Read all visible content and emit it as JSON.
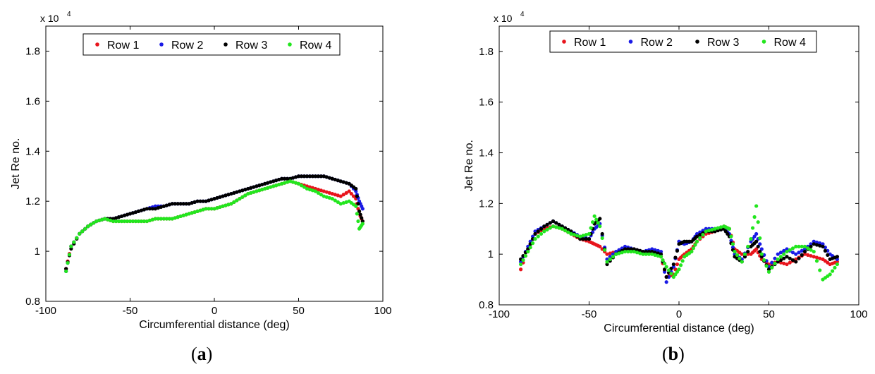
{
  "chart_data": [
    {
      "type": "scatter",
      "caption": "a",
      "xlabel": "Circumferential distance (deg)",
      "ylabel": "Jet Re no.",
      "exponent_label": "x 10",
      "exponent_power": "4",
      "xlim": [
        -100,
        100
      ],
      "ylim": [
        0.8,
        1.9
      ],
      "xticks": [
        "-100",
        "-50",
        "0",
        "50",
        "100"
      ],
      "yticks": [
        "0.8",
        "1",
        "1.2",
        "1.4",
        "1.6",
        "1.8"
      ],
      "legend_position": "top",
      "series": [
        {
          "name": "Row 1",
          "color": "#e8141c",
          "x": [
            -88,
            -85,
            -80,
            -75,
            -70,
            -65,
            -60,
            -55,
            -50,
            -45,
            -40,
            -35,
            -30,
            -25,
            -20,
            -15,
            -10,
            -5,
            0,
            5,
            10,
            15,
            20,
            25,
            30,
            35,
            40,
            45,
            50,
            55,
            60,
            65,
            70,
            75,
            80,
            84,
            86,
            88
          ],
          "y": [
            0.93,
            1.02,
            1.07,
            1.1,
            1.12,
            1.13,
            1.12,
            1.12,
            1.12,
            1.12,
            1.12,
            1.13,
            1.13,
            1.13,
            1.14,
            1.15,
            1.16,
            1.17,
            1.17,
            1.18,
            1.19,
            1.21,
            1.23,
            1.24,
            1.25,
            1.26,
            1.27,
            1.28,
            1.27,
            1.26,
            1.25,
            1.24,
            1.23,
            1.22,
            1.24,
            1.21,
            1.15,
            1.12
          ]
        },
        {
          "name": "Row 2",
          "color": "#1a1ae6",
          "x": [
            -88,
            -85,
            -80,
            -75,
            -70,
            -65,
            -60,
            -55,
            -50,
            -45,
            -40,
            -35,
            -30,
            -25,
            -20,
            -15,
            -10,
            -5,
            0,
            5,
            10,
            15,
            20,
            25,
            30,
            35,
            40,
            45,
            50,
            55,
            60,
            65,
            70,
            75,
            80,
            84,
            86,
            88
          ],
          "y": [
            0.92,
            1.02,
            1.07,
            1.1,
            1.12,
            1.13,
            1.13,
            1.14,
            1.15,
            1.16,
            1.17,
            1.18,
            1.18,
            1.19,
            1.19,
            1.19,
            1.2,
            1.2,
            1.21,
            1.22,
            1.23,
            1.24,
            1.25,
            1.26,
            1.27,
            1.28,
            1.29,
            1.29,
            1.3,
            1.3,
            1.3,
            1.3,
            1.29,
            1.28,
            1.27,
            1.24,
            1.2,
            1.17
          ]
        },
        {
          "name": "Row 3",
          "color": "#000000",
          "x": [
            -88,
            -85,
            -80,
            -75,
            -70,
            -65,
            -60,
            -55,
            -50,
            -45,
            -40,
            -35,
            -30,
            -25,
            -20,
            -15,
            -10,
            -5,
            0,
            5,
            10,
            15,
            20,
            25,
            30,
            35,
            40,
            45,
            50,
            55,
            60,
            65,
            70,
            75,
            80,
            84,
            86,
            88
          ],
          "y": [
            0.93,
            1.01,
            1.07,
            1.1,
            1.12,
            1.13,
            1.13,
            1.14,
            1.15,
            1.16,
            1.17,
            1.17,
            1.18,
            1.19,
            1.19,
            1.19,
            1.2,
            1.2,
            1.21,
            1.22,
            1.23,
            1.24,
            1.25,
            1.26,
            1.27,
            1.28,
            1.29,
            1.29,
            1.3,
            1.3,
            1.3,
            1.3,
            1.29,
            1.28,
            1.27,
            1.25,
            1.16,
            1.12
          ]
        },
        {
          "name": "Row 4",
          "color": "#22e61e",
          "x": [
            -88,
            -85,
            -80,
            -75,
            -70,
            -65,
            -60,
            -55,
            -50,
            -45,
            -40,
            -35,
            -30,
            -25,
            -20,
            -15,
            -10,
            -5,
            0,
            5,
            10,
            15,
            20,
            25,
            30,
            35,
            40,
            45,
            50,
            55,
            60,
            65,
            70,
            75,
            80,
            84,
            86,
            88
          ],
          "y": [
            0.92,
            1.02,
            1.07,
            1.1,
            1.12,
            1.13,
            1.12,
            1.12,
            1.12,
            1.12,
            1.12,
            1.13,
            1.13,
            1.13,
            1.14,
            1.15,
            1.16,
            1.17,
            1.17,
            1.18,
            1.19,
            1.21,
            1.23,
            1.24,
            1.25,
            1.26,
            1.27,
            1.28,
            1.27,
            1.25,
            1.24,
            1.22,
            1.21,
            1.19,
            1.2,
            1.18,
            1.09,
            1.11
          ]
        }
      ]
    },
    {
      "type": "scatter",
      "caption": "b",
      "xlabel": "Circumferential distance (deg)",
      "ylabel": "Jet Re no.",
      "exponent_label": "x 10",
      "exponent_power": "4",
      "xlim": [
        -100,
        100
      ],
      "ylim": [
        0.8,
        1.9
      ],
      "xticks": [
        "-100",
        "-50",
        "0",
        "50",
        "100"
      ],
      "yticks": [
        "0.8",
        "1",
        "1.2",
        "1.4",
        "1.6",
        "1.8"
      ],
      "legend_position": "top",
      "series": [
        {
          "name": "Row 1",
          "color": "#e8141c",
          "x": [
            -88,
            -84,
            -80,
            -75,
            -70,
            -65,
            -60,
            -55,
            -50,
            -47,
            -44,
            -40,
            -35,
            -30,
            -25,
            -20,
            -15,
            -10,
            -7,
            -3,
            0,
            3,
            7,
            10,
            15,
            20,
            25,
            28,
            31,
            35,
            40,
            43,
            46,
            50,
            55,
            60,
            65,
            70,
            75,
            80,
            84,
            88
          ],
          "y": [
            0.94,
            1.02,
            1.08,
            1.1,
            1.11,
            1.1,
            1.08,
            1.06,
            1.05,
            1.04,
            1.03,
            1.0,
            1.01,
            1.02,
            1.02,
            1.01,
            1.01,
            0.99,
            0.91,
            0.92,
            0.98,
            1.0,
            1.02,
            1.05,
            1.08,
            1.09,
            1.11,
            1.1,
            1.02,
            1.0,
            1.0,
            1.02,
            0.98,
            0.96,
            0.97,
            0.96,
            0.98,
            1.0,
            0.99,
            0.98,
            0.96,
            0.97
          ]
        },
        {
          "name": "Row 2",
          "color": "#1a1ae6",
          "x": [
            -88,
            -84,
            -80,
            -75,
            -70,
            -65,
            -60,
            -55,
            -50,
            -47,
            -44,
            -40,
            -35,
            -30,
            -25,
            -20,
            -15,
            -10,
            -7,
            -3,
            0,
            3,
            7,
            10,
            15,
            20,
            25,
            28,
            31,
            35,
            40,
            43,
            46,
            50,
            55,
            60,
            65,
            70,
            75,
            80,
            84,
            88
          ],
          "y": [
            0.97,
            1.03,
            1.09,
            1.11,
            1.13,
            1.11,
            1.09,
            1.07,
            1.06,
            1.1,
            1.12,
            0.98,
            1.01,
            1.03,
            1.02,
            1.01,
            1.02,
            1.01,
            0.89,
            0.95,
            1.05,
            1.04,
            1.05,
            1.08,
            1.1,
            1.1,
            1.1,
            1.08,
            1.0,
            0.98,
            1.05,
            1.08,
            1.02,
            0.95,
            1.0,
            1.02,
            1.0,
            1.02,
            1.05,
            1.04,
            1.0,
            0.98
          ]
        },
        {
          "name": "Row 3",
          "color": "#000000",
          "x": [
            -88,
            -84,
            -80,
            -75,
            -70,
            -65,
            -60,
            -55,
            -50,
            -47,
            -44,
            -40,
            -35,
            -30,
            -25,
            -20,
            -15,
            -10,
            -7,
            -3,
            0,
            3,
            7,
            10,
            15,
            20,
            25,
            28,
            31,
            35,
            40,
            43,
            46,
            50,
            55,
            60,
            65,
            70,
            75,
            80,
            84,
            88
          ],
          "y": [
            0.98,
            1.02,
            1.08,
            1.11,
            1.13,
            1.11,
            1.09,
            1.06,
            1.06,
            1.12,
            1.14,
            0.96,
            1.0,
            1.02,
            1.02,
            1.01,
            1.01,
            1.0,
            0.91,
            0.96,
            1.04,
            1.05,
            1.05,
            1.07,
            1.09,
            1.09,
            1.1,
            1.07,
            0.99,
            0.97,
            1.03,
            1.05,
            0.99,
            0.94,
            0.97,
            0.99,
            0.97,
            1.01,
            1.04,
            1.03,
            0.98,
            0.99
          ]
        },
        {
          "name": "Row 4",
          "color": "#22e61e",
          "x": [
            -88,
            -84,
            -80,
            -75,
            -70,
            -65,
            -60,
            -55,
            -50,
            -47,
            -44,
            -40,
            -35,
            -30,
            -25,
            -20,
            -15,
            -10,
            -7,
            -3,
            0,
            3,
            7,
            10,
            15,
            20,
            25,
            28,
            31,
            35,
            40,
            43,
            46,
            50,
            55,
            60,
            65,
            70,
            75,
            80,
            84,
            88
          ],
          "y": [
            0.96,
            1.01,
            1.06,
            1.09,
            1.11,
            1.1,
            1.08,
            1.07,
            1.08,
            1.15,
            1.11,
            0.97,
            1.0,
            1.01,
            1.01,
            1.0,
            1.0,
            0.99,
            0.95,
            0.91,
            0.94,
            0.99,
            1.01,
            1.05,
            1.09,
            1.1,
            1.11,
            1.1,
            1.01,
            0.97,
            1.06,
            1.19,
            1.0,
            0.93,
            0.98,
            1.01,
            1.03,
            1.03,
            1.01,
            0.9,
            0.92,
            0.96
          ]
        }
      ]
    }
  ]
}
